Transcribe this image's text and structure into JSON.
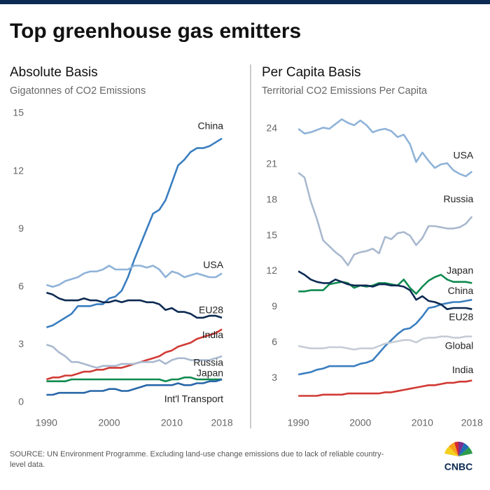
{
  "title": "Top greenhouse gas emitters",
  "source": "SOURCE: UN Environment Programme. Excluding land-use change emissions due to lack of reliable country-level data.",
  "logo": "CNBC",
  "chart_data": [
    {
      "type": "line",
      "title": "Absolute Basis",
      "subtitle": "Gigatonnes of CO2 Emissions",
      "x": [
        1990,
        1991,
        1992,
        1993,
        1994,
        1995,
        1996,
        1997,
        1998,
        1999,
        2000,
        2001,
        2002,
        2003,
        2004,
        2005,
        2006,
        2007,
        2008,
        2009,
        2010,
        2011,
        2012,
        2013,
        2014,
        2015,
        2016,
        2017,
        2018
      ],
      "xlim": [
        1987.5,
        2020
      ],
      "xticks": [
        1990,
        2000,
        2010,
        2018
      ],
      "ylim": [
        0,
        15
      ],
      "yticks": [
        0,
        3,
        6,
        9,
        12,
        15
      ],
      "series": [
        {
          "name": "China",
          "color": "#3a7ec0",
          "values": [
            3.9,
            4.0,
            4.2,
            4.4,
            4.6,
            5.0,
            5.0,
            5.0,
            5.1,
            5.1,
            5.4,
            5.5,
            5.8,
            6.5,
            7.4,
            8.2,
            9.0,
            9.8,
            10.0,
            10.5,
            11.4,
            12.3,
            12.6,
            13.0,
            13.2,
            13.2,
            13.3,
            13.5,
            13.7
          ]
        },
        {
          "name": "USA",
          "color": "#8fb3d9",
          "values": [
            6.1,
            6.0,
            6.1,
            6.3,
            6.4,
            6.5,
            6.7,
            6.8,
            6.8,
            6.9,
            7.1,
            6.9,
            6.9,
            6.9,
            7.1,
            7.1,
            7.0,
            7.1,
            6.9,
            6.5,
            6.8,
            6.7,
            6.5,
            6.6,
            6.7,
            6.6,
            6.5,
            6.5,
            6.7
          ]
        },
        {
          "name": "EU28",
          "color": "#0c2a52",
          "values": [
            5.7,
            5.6,
            5.4,
            5.3,
            5.3,
            5.3,
            5.4,
            5.3,
            5.3,
            5.2,
            5.2,
            5.3,
            5.2,
            5.3,
            5.3,
            5.3,
            5.2,
            5.2,
            5.1,
            4.8,
            4.9,
            4.7,
            4.7,
            4.6,
            4.4,
            4.4,
            4.5,
            4.5,
            4.4
          ]
        },
        {
          "name": "India",
          "color": "#d13a34",
          "values": [
            1.2,
            1.3,
            1.3,
            1.4,
            1.4,
            1.5,
            1.6,
            1.6,
            1.7,
            1.7,
            1.8,
            1.8,
            1.8,
            1.9,
            2.0,
            2.1,
            2.2,
            2.3,
            2.4,
            2.6,
            2.7,
            2.9,
            3.0,
            3.1,
            3.3,
            3.4,
            3.5,
            3.6,
            3.8
          ]
        },
        {
          "name": "Russia",
          "color": "#a9b9cf",
          "values": [
            3.0,
            2.9,
            2.6,
            2.4,
            2.1,
            2.1,
            2.0,
            1.9,
            1.8,
            1.9,
            1.9,
            1.9,
            2.0,
            2.0,
            2.0,
            2.1,
            2.1,
            2.1,
            2.2,
            2.0,
            2.2,
            2.3,
            2.3,
            2.2,
            2.2,
            2.2,
            2.2,
            2.3,
            2.4
          ]
        },
        {
          "name": "Japan",
          "color": "#0f8a4f",
          "values": [
            1.1,
            1.1,
            1.1,
            1.1,
            1.2,
            1.2,
            1.2,
            1.2,
            1.2,
            1.2,
            1.2,
            1.2,
            1.2,
            1.2,
            1.2,
            1.2,
            1.2,
            1.2,
            1.2,
            1.1,
            1.2,
            1.2,
            1.3,
            1.3,
            1.2,
            1.2,
            1.2,
            1.2,
            1.2
          ]
        },
        {
          "name": "Int'l Transport",
          "color": "#2766a8",
          "values": [
            0.4,
            0.4,
            0.5,
            0.5,
            0.5,
            0.5,
            0.5,
            0.6,
            0.6,
            0.6,
            0.7,
            0.7,
            0.6,
            0.6,
            0.7,
            0.8,
            0.9,
            0.9,
            0.9,
            0.9,
            0.9,
            1.0,
            0.9,
            0.9,
            1.0,
            1.0,
            1.1,
            1.1,
            1.2
          ]
        }
      ]
    },
    {
      "type": "line",
      "title": "Per Capita Basis",
      "subtitle": "Territorial CO2 Emissions Per Capita",
      "x": [
        1990,
        1991,
        1992,
        1993,
        1994,
        1995,
        1996,
        1997,
        1998,
        1999,
        2000,
        2001,
        2002,
        2003,
        2004,
        2005,
        2006,
        2007,
        2008,
        2009,
        2010,
        2011,
        2012,
        2013,
        2014,
        2015,
        2016,
        2017,
        2018
      ],
      "xlim": [
        1987.5,
        2020
      ],
      "xticks": [
        1990,
        2000,
        2010,
        2018
      ],
      "ylim": [
        1,
        25
      ],
      "yticks": [
        3,
        6,
        9,
        12,
        15,
        18,
        21,
        24
      ],
      "series": [
        {
          "name": "USA",
          "color": "#8fb3d9",
          "values": [
            24.0,
            23.6,
            23.7,
            23.9,
            24.1,
            24.0,
            24.4,
            24.8,
            24.5,
            24.3,
            24.7,
            24.3,
            23.7,
            23.9,
            24.0,
            23.8,
            23.3,
            23.5,
            22.7,
            21.2,
            22.0,
            21.3,
            20.7,
            21.0,
            21.1,
            20.5,
            20.2,
            20.0,
            20.4
          ]
        },
        {
          "name": "Russia",
          "color": "#a9b9cf",
          "values": [
            20.3,
            19.9,
            17.9,
            16.4,
            14.6,
            14.1,
            13.6,
            13.2,
            12.5,
            13.4,
            13.6,
            13.7,
            13.9,
            13.5,
            14.9,
            14.7,
            15.2,
            15.3,
            15.0,
            14.2,
            14.8,
            15.8,
            15.8,
            15.7,
            15.6,
            15.6,
            15.7,
            16.0,
            16.6
          ]
        },
        {
          "name": "Japan",
          "color": "#0f8a4f",
          "values": [
            10.3,
            10.3,
            10.4,
            10.4,
            10.4,
            10.9,
            11.0,
            11.1,
            11.0,
            10.6,
            10.8,
            10.7,
            10.8,
            11.0,
            11.0,
            10.9,
            10.8,
            11.3,
            10.6,
            10.1,
            10.7,
            11.2,
            11.5,
            11.7,
            11.3,
            11.1,
            11.1,
            11.1,
            11.0
          ]
        },
        {
          "name": "China",
          "color": "#3a7ec0",
          "values": [
            3.3,
            3.4,
            3.5,
            3.7,
            3.8,
            4.0,
            4.0,
            4.0,
            4.0,
            4.0,
            4.2,
            4.3,
            4.5,
            5.1,
            5.7,
            6.2,
            6.7,
            7.1,
            7.2,
            7.6,
            8.2,
            8.9,
            9.0,
            9.2,
            9.3,
            9.4,
            9.4,
            9.5,
            9.6
          ]
        },
        {
          "name": "EU28",
          "color": "#0c2a52",
          "values": [
            12.0,
            11.7,
            11.3,
            11.1,
            11.0,
            11.0,
            11.3,
            11.1,
            10.9,
            10.8,
            10.8,
            10.8,
            10.7,
            10.9,
            10.9,
            10.8,
            10.8,
            10.7,
            10.4,
            9.6,
            9.9,
            9.5,
            9.4,
            9.2,
            8.8,
            8.9,
            8.9,
            8.9,
            8.8
          ]
        },
        {
          "name": "Global",
          "color": "#c5ccd6",
          "values": [
            5.7,
            5.6,
            5.5,
            5.5,
            5.5,
            5.6,
            5.6,
            5.6,
            5.5,
            5.4,
            5.5,
            5.5,
            5.5,
            5.7,
            5.9,
            6.0,
            6.1,
            6.2,
            6.2,
            6.0,
            6.3,
            6.4,
            6.4,
            6.5,
            6.5,
            6.4,
            6.4,
            6.5,
            6.5
          ]
        },
        {
          "name": "India",
          "color": "#d13a34",
          "values": [
            1.5,
            1.5,
            1.5,
            1.5,
            1.6,
            1.6,
            1.6,
            1.6,
            1.7,
            1.7,
            1.7,
            1.7,
            1.7,
            1.7,
            1.8,
            1.8,
            1.9,
            2.0,
            2.1,
            2.2,
            2.3,
            2.4,
            2.4,
            2.5,
            2.6,
            2.6,
            2.7,
            2.7,
            2.8
          ]
        }
      ]
    }
  ]
}
